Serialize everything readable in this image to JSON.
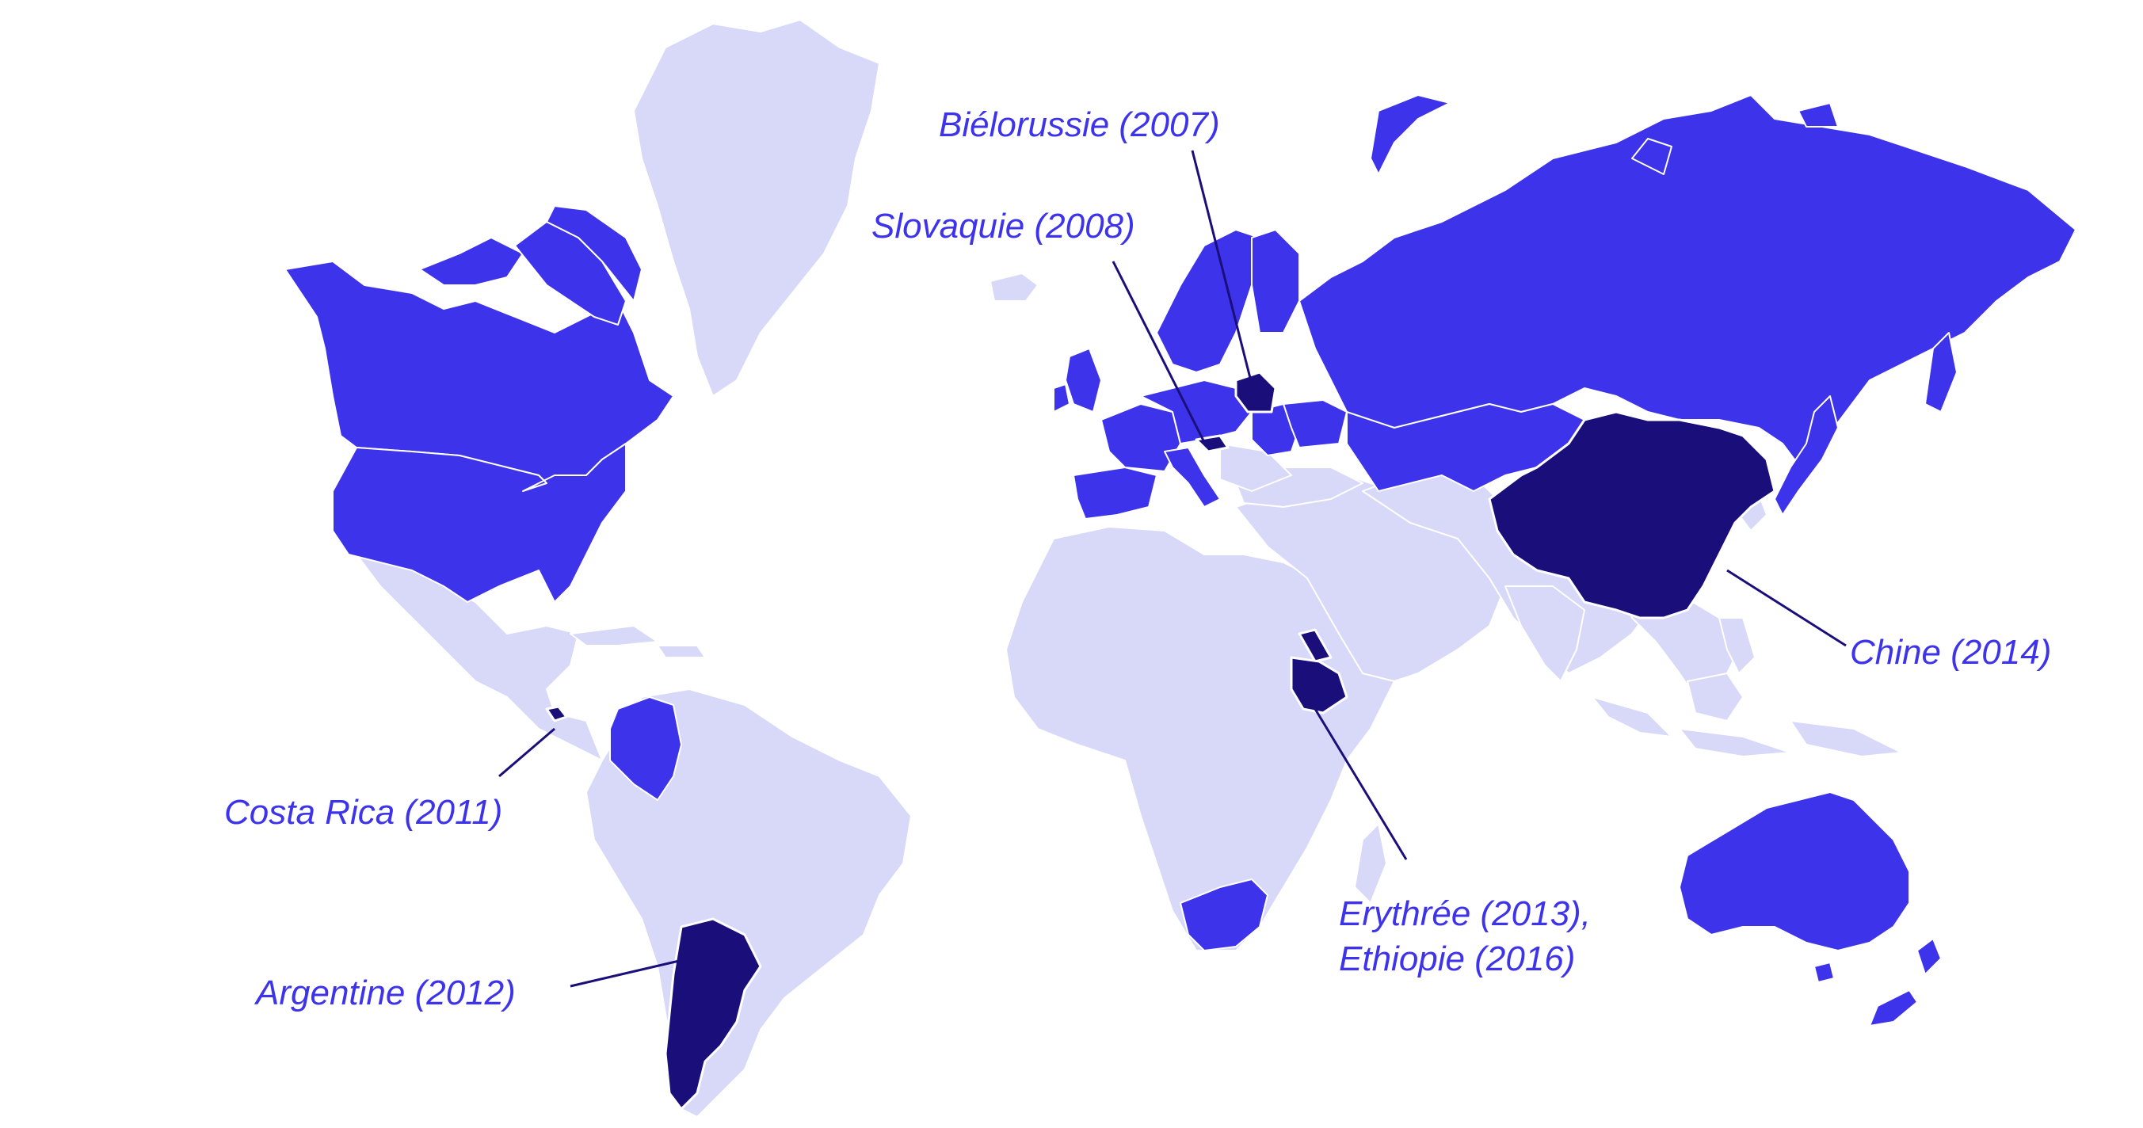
{
  "colors": {
    "other": "#d8d8f8",
    "signatory": "#3d33ea",
    "highlighted": "#1a0f7a",
    "label": "#3d33ea",
    "leader": "#1a0f7a",
    "background": "#ffffff"
  },
  "countries_highlighted": [
    "Biélorussie",
    "Slovaquie",
    "Chine",
    "Costa Rica",
    "Argentine",
    "Erythrée",
    "Ethiopie"
  ],
  "labels": {
    "belarus": "Biélorussie (2007)",
    "slovakia": "Slovaquie (2008)",
    "china": "Chine (2014)",
    "costa_rica": "Costa Rica (2011)",
    "argentina": "Argentine (2012)",
    "eritrea": "Erythrée (2013),",
    "ethiopia": "Ethiopie (2016)"
  }
}
